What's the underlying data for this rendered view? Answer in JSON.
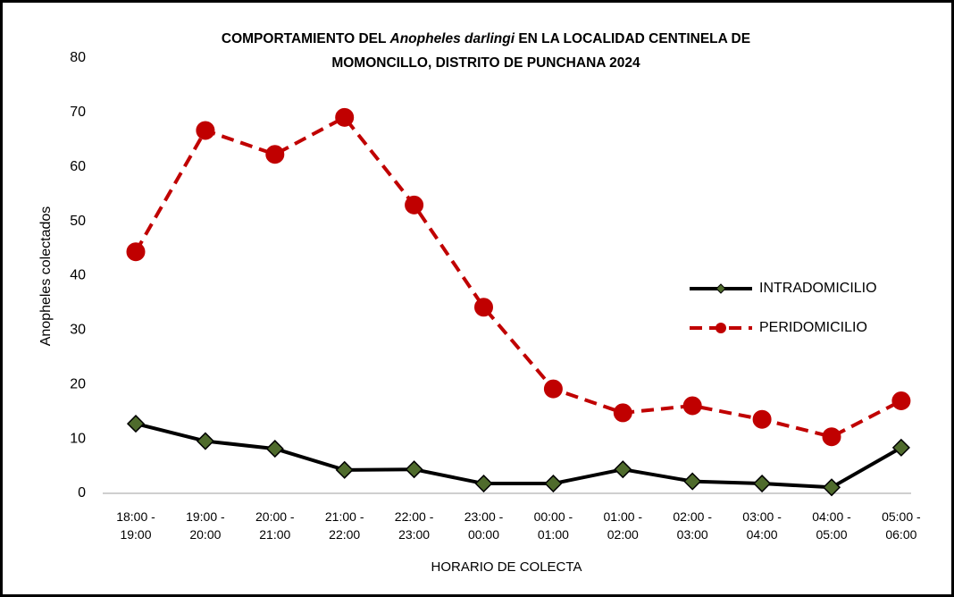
{
  "chart_data": {
    "type": "line",
    "title": [
      "COMPORTAMIENTO DEL",
      "Anopheles darlingi",
      "EN LA LOCALIDAD CENTINELA  DE",
      "MOMONCILLO, DISTRITO DE PUNCHANA 2024"
    ],
    "x_label": "HORARIO DE COLECTA",
    "y_label": "Anopheles colectados",
    "categories": [
      "18:00 - 19:00",
      "19:00 - 20:00",
      "20:00 - 21:00",
      "21:00 - 22:00",
      "22:00 - 23:00",
      "23:00 - 00:00",
      "00:00 - 01:00",
      "01:00 - 02:00",
      "02:00 - 03:00",
      "03:00 - 04:00",
      "04:00 - 05:00",
      "05:00 - 06:00"
    ],
    "series": [
      {
        "name": "INTRADOMICILIO",
        "color": "#000000",
        "marker_color": "#4f6b2c",
        "marker": "diamond",
        "dash": false,
        "values": [
          12.8,
          9.6,
          8.2,
          4.3,
          4.4,
          1.8,
          1.8,
          4.4,
          2.2,
          1.8,
          1.1,
          8.4
        ]
      },
      {
        "name": "PERIDOMICILIO",
        "color": "#c00000",
        "marker_color": "#c00000",
        "marker": "circle",
        "dash": true,
        "values": [
          44.4,
          66.7,
          62.3,
          69.1,
          53,
          34.2,
          19.2,
          14.8,
          16.1,
          13.6,
          10.4,
          17
        ]
      }
    ],
    "ylim": [
      0,
      80
    ],
    "yticks": [
      0,
      10,
      20,
      30,
      40,
      50,
      60,
      70,
      80
    ],
    "grid": false,
    "legend": "right"
  }
}
